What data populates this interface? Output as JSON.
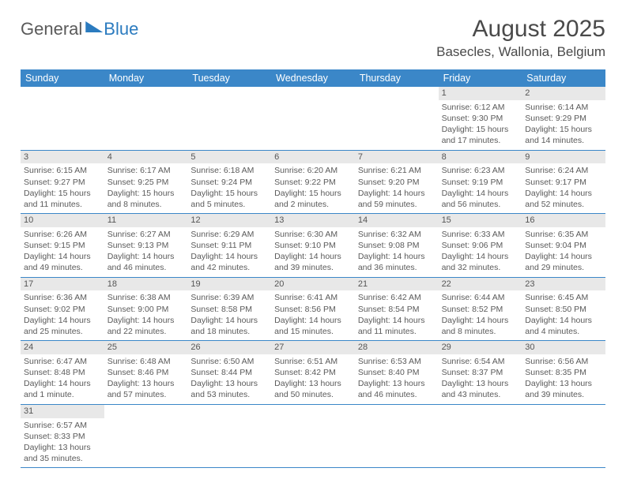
{
  "logo": {
    "general": "General",
    "blue": "Blue"
  },
  "title": "August 2025",
  "location": "Basecles, Wallonia, Belgium",
  "colors": {
    "header_bg": "#3b87c8",
    "divider": "#3b87c8",
    "daynum_bg": "#e8e8e8",
    "text": "#5a5a5a",
    "logo_blue": "#2b7bbf"
  },
  "weekdays": [
    "Sunday",
    "Monday",
    "Tuesday",
    "Wednesday",
    "Thursday",
    "Friday",
    "Saturday"
  ],
  "weeks": [
    [
      null,
      null,
      null,
      null,
      null,
      {
        "n": "1",
        "sunrise": "Sunrise: 6:12 AM",
        "sunset": "Sunset: 9:30 PM",
        "daylight": "Daylight: 15 hours and 17 minutes."
      },
      {
        "n": "2",
        "sunrise": "Sunrise: 6:14 AM",
        "sunset": "Sunset: 9:29 PM",
        "daylight": "Daylight: 15 hours and 14 minutes."
      }
    ],
    [
      {
        "n": "3",
        "sunrise": "Sunrise: 6:15 AM",
        "sunset": "Sunset: 9:27 PM",
        "daylight": "Daylight: 15 hours and 11 minutes."
      },
      {
        "n": "4",
        "sunrise": "Sunrise: 6:17 AM",
        "sunset": "Sunset: 9:25 PM",
        "daylight": "Daylight: 15 hours and 8 minutes."
      },
      {
        "n": "5",
        "sunrise": "Sunrise: 6:18 AM",
        "sunset": "Sunset: 9:24 PM",
        "daylight": "Daylight: 15 hours and 5 minutes."
      },
      {
        "n": "6",
        "sunrise": "Sunrise: 6:20 AM",
        "sunset": "Sunset: 9:22 PM",
        "daylight": "Daylight: 15 hours and 2 minutes."
      },
      {
        "n": "7",
        "sunrise": "Sunrise: 6:21 AM",
        "sunset": "Sunset: 9:20 PM",
        "daylight": "Daylight: 14 hours and 59 minutes."
      },
      {
        "n": "8",
        "sunrise": "Sunrise: 6:23 AM",
        "sunset": "Sunset: 9:19 PM",
        "daylight": "Daylight: 14 hours and 56 minutes."
      },
      {
        "n": "9",
        "sunrise": "Sunrise: 6:24 AM",
        "sunset": "Sunset: 9:17 PM",
        "daylight": "Daylight: 14 hours and 52 minutes."
      }
    ],
    [
      {
        "n": "10",
        "sunrise": "Sunrise: 6:26 AM",
        "sunset": "Sunset: 9:15 PM",
        "daylight": "Daylight: 14 hours and 49 minutes."
      },
      {
        "n": "11",
        "sunrise": "Sunrise: 6:27 AM",
        "sunset": "Sunset: 9:13 PM",
        "daylight": "Daylight: 14 hours and 46 minutes."
      },
      {
        "n": "12",
        "sunrise": "Sunrise: 6:29 AM",
        "sunset": "Sunset: 9:11 PM",
        "daylight": "Daylight: 14 hours and 42 minutes."
      },
      {
        "n": "13",
        "sunrise": "Sunrise: 6:30 AM",
        "sunset": "Sunset: 9:10 PM",
        "daylight": "Daylight: 14 hours and 39 minutes."
      },
      {
        "n": "14",
        "sunrise": "Sunrise: 6:32 AM",
        "sunset": "Sunset: 9:08 PM",
        "daylight": "Daylight: 14 hours and 36 minutes."
      },
      {
        "n": "15",
        "sunrise": "Sunrise: 6:33 AM",
        "sunset": "Sunset: 9:06 PM",
        "daylight": "Daylight: 14 hours and 32 minutes."
      },
      {
        "n": "16",
        "sunrise": "Sunrise: 6:35 AM",
        "sunset": "Sunset: 9:04 PM",
        "daylight": "Daylight: 14 hours and 29 minutes."
      }
    ],
    [
      {
        "n": "17",
        "sunrise": "Sunrise: 6:36 AM",
        "sunset": "Sunset: 9:02 PM",
        "daylight": "Daylight: 14 hours and 25 minutes."
      },
      {
        "n": "18",
        "sunrise": "Sunrise: 6:38 AM",
        "sunset": "Sunset: 9:00 PM",
        "daylight": "Daylight: 14 hours and 22 minutes."
      },
      {
        "n": "19",
        "sunrise": "Sunrise: 6:39 AM",
        "sunset": "Sunset: 8:58 PM",
        "daylight": "Daylight: 14 hours and 18 minutes."
      },
      {
        "n": "20",
        "sunrise": "Sunrise: 6:41 AM",
        "sunset": "Sunset: 8:56 PM",
        "daylight": "Daylight: 14 hours and 15 minutes."
      },
      {
        "n": "21",
        "sunrise": "Sunrise: 6:42 AM",
        "sunset": "Sunset: 8:54 PM",
        "daylight": "Daylight: 14 hours and 11 minutes."
      },
      {
        "n": "22",
        "sunrise": "Sunrise: 6:44 AM",
        "sunset": "Sunset: 8:52 PM",
        "daylight": "Daylight: 14 hours and 8 minutes."
      },
      {
        "n": "23",
        "sunrise": "Sunrise: 6:45 AM",
        "sunset": "Sunset: 8:50 PM",
        "daylight": "Daylight: 14 hours and 4 minutes."
      }
    ],
    [
      {
        "n": "24",
        "sunrise": "Sunrise: 6:47 AM",
        "sunset": "Sunset: 8:48 PM",
        "daylight": "Daylight: 14 hours and 1 minute."
      },
      {
        "n": "25",
        "sunrise": "Sunrise: 6:48 AM",
        "sunset": "Sunset: 8:46 PM",
        "daylight": "Daylight: 13 hours and 57 minutes."
      },
      {
        "n": "26",
        "sunrise": "Sunrise: 6:50 AM",
        "sunset": "Sunset: 8:44 PM",
        "daylight": "Daylight: 13 hours and 53 minutes."
      },
      {
        "n": "27",
        "sunrise": "Sunrise: 6:51 AM",
        "sunset": "Sunset: 8:42 PM",
        "daylight": "Daylight: 13 hours and 50 minutes."
      },
      {
        "n": "28",
        "sunrise": "Sunrise: 6:53 AM",
        "sunset": "Sunset: 8:40 PM",
        "daylight": "Daylight: 13 hours and 46 minutes."
      },
      {
        "n": "29",
        "sunrise": "Sunrise: 6:54 AM",
        "sunset": "Sunset: 8:37 PM",
        "daylight": "Daylight: 13 hours and 43 minutes."
      },
      {
        "n": "30",
        "sunrise": "Sunrise: 6:56 AM",
        "sunset": "Sunset: 8:35 PM",
        "daylight": "Daylight: 13 hours and 39 minutes."
      }
    ],
    [
      {
        "n": "31",
        "sunrise": "Sunrise: 6:57 AM",
        "sunset": "Sunset: 8:33 PM",
        "daylight": "Daylight: 13 hours and 35 minutes."
      },
      null,
      null,
      null,
      null,
      null,
      null
    ]
  ]
}
